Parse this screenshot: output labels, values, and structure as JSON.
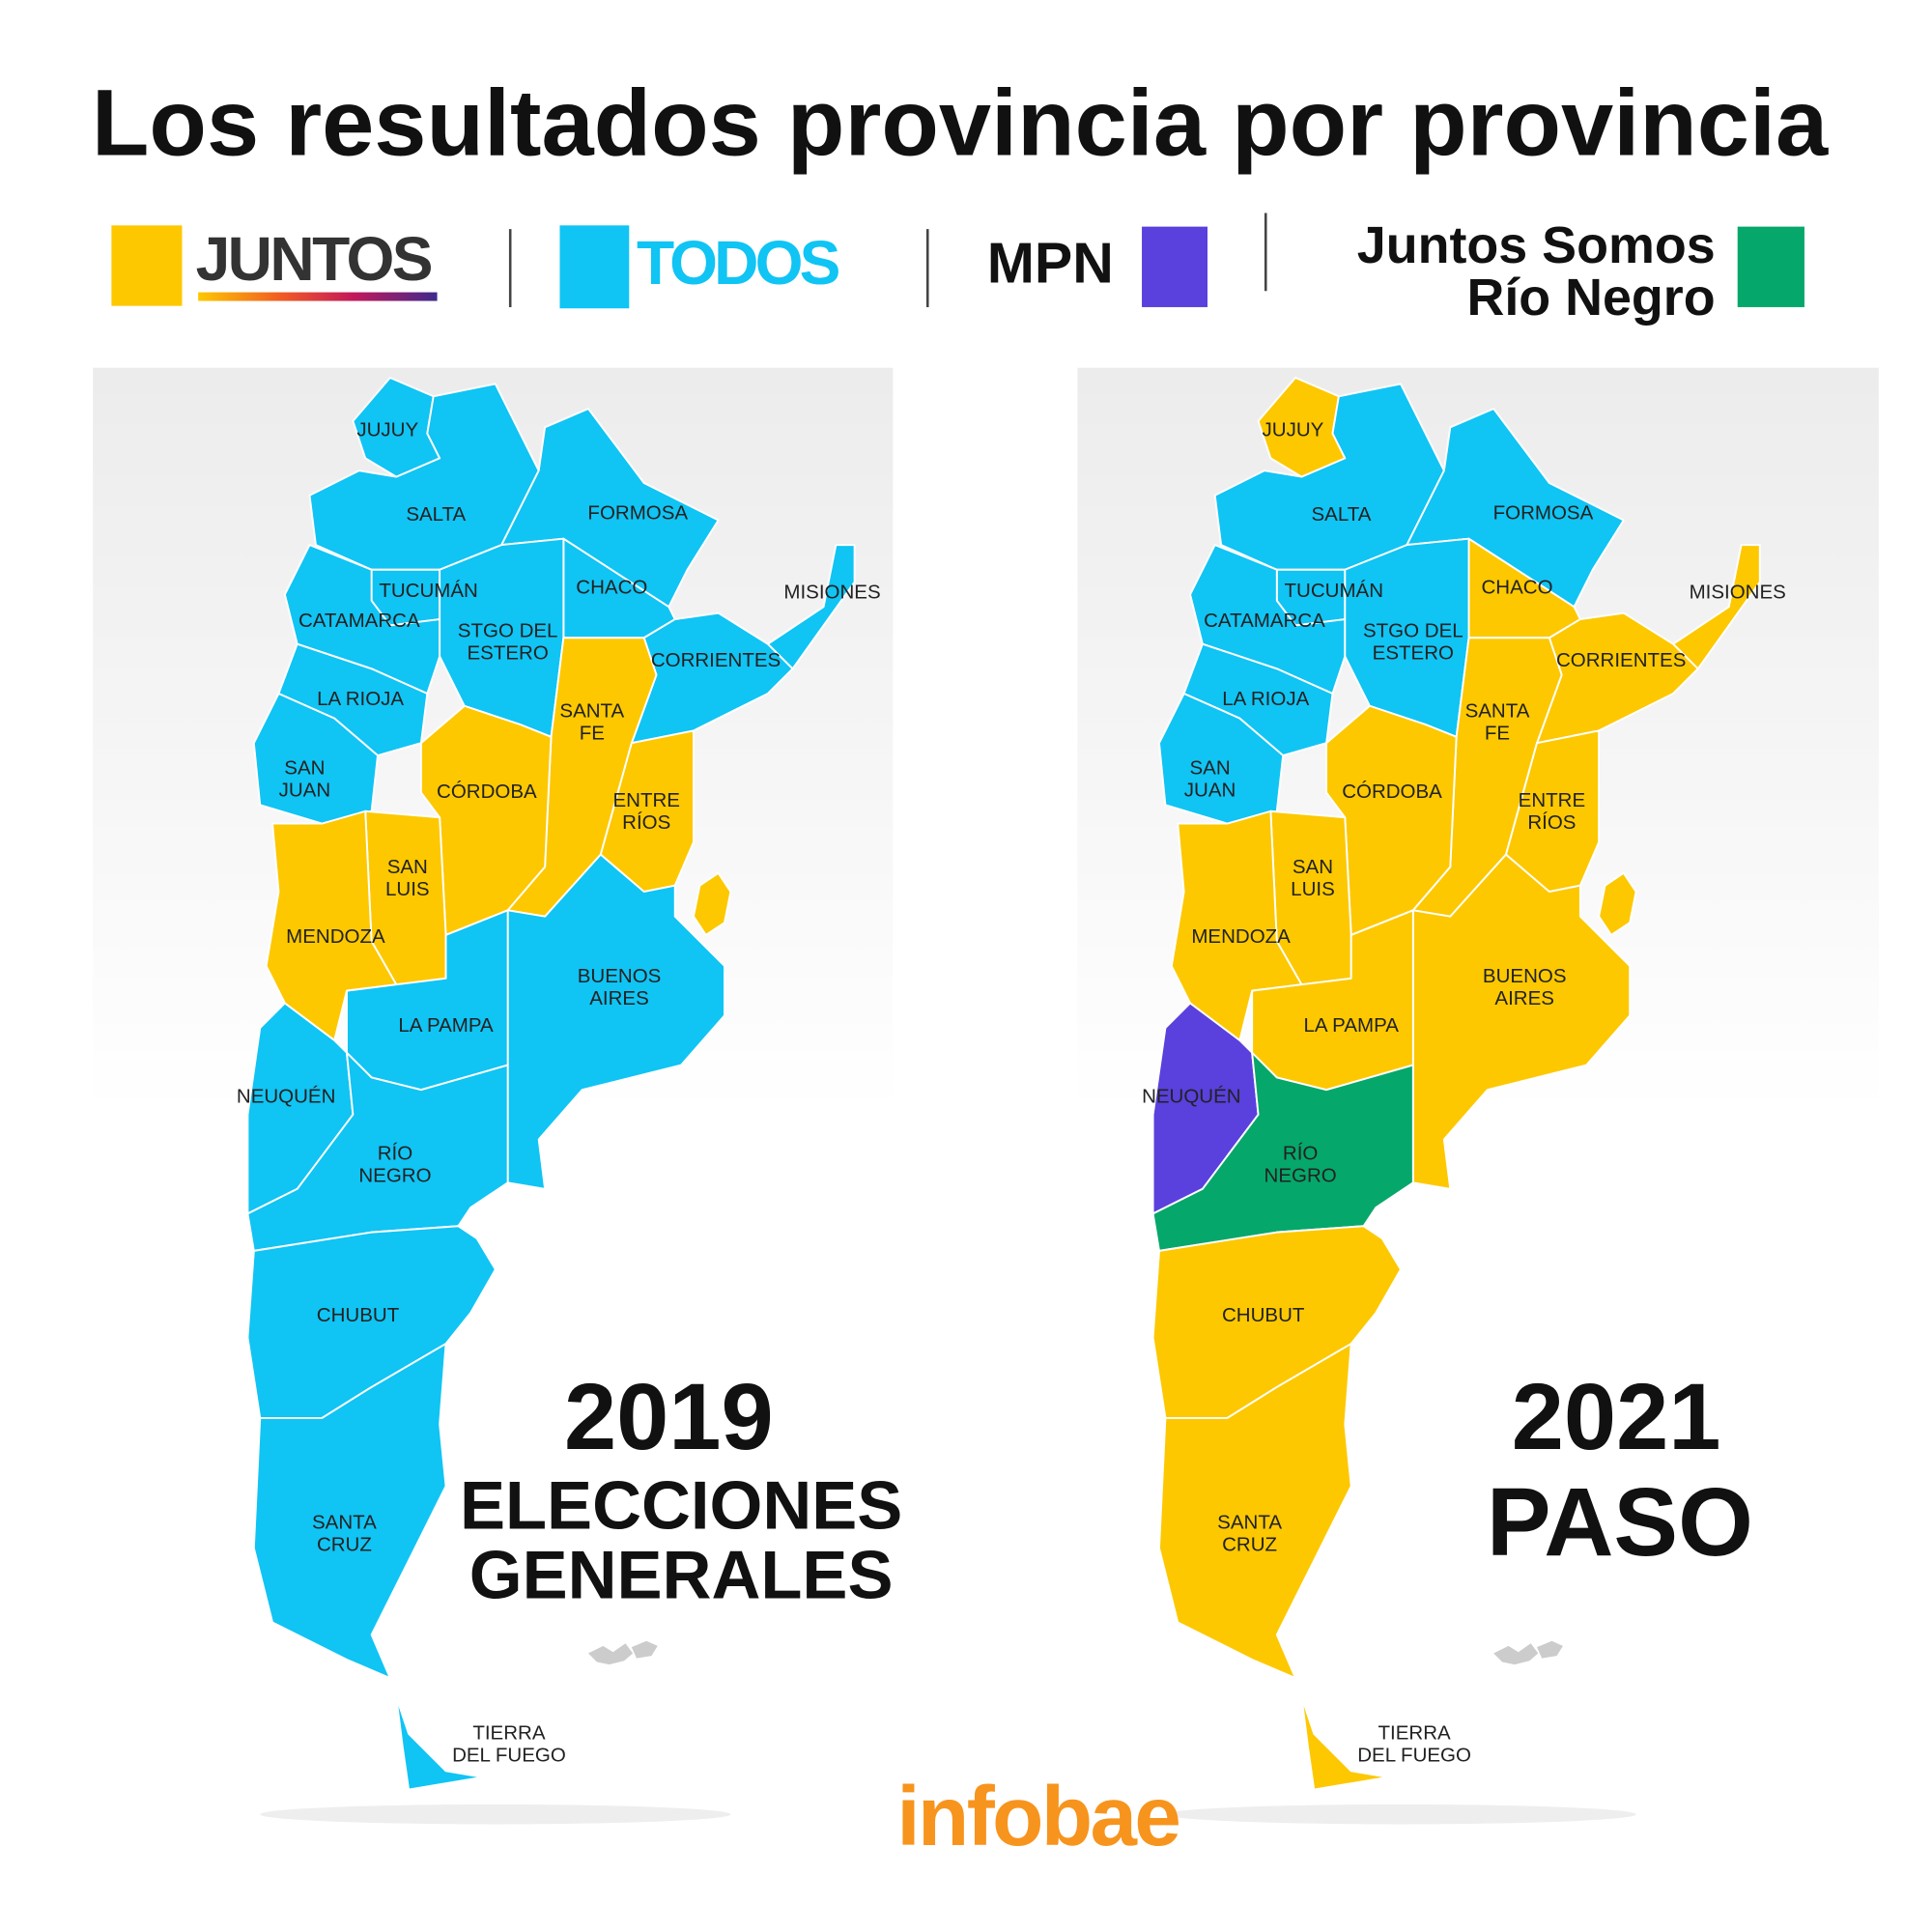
{
  "title": "Los resultados provincia por provincia",
  "legend": [
    {
      "label": "JUNTOS",
      "color": "#fdc800"
    },
    {
      "label": "TODOS",
      "color": "#10c4f4"
    },
    {
      "label": "MPN",
      "color": "#5a40dc"
    },
    {
      "label": [
        "Juntos Somos",
        "Río Negro"
      ],
      "color": "#06a76b"
    }
  ],
  "maps": [
    {
      "year": "2019",
      "subtitle": [
        "ELECCIONES",
        "GENERALES"
      ],
      "provinces": [
        {
          "label": [
            "JUJUY"
          ],
          "color": "#10c4f4"
        },
        {
          "label": [
            "SALTA"
          ],
          "color": "#10c4f4"
        },
        {
          "label": [
            "FORMOSA"
          ],
          "color": "#10c4f4"
        },
        {
          "label": [
            "CHACO"
          ],
          "color": "#10c4f4"
        },
        {
          "label": [
            "MISIONES"
          ],
          "color": "#10c4f4"
        },
        {
          "label": [
            "TUCUMÁN"
          ],
          "color": "#10c4f4"
        },
        {
          "label": [
            "CATAMARCA"
          ],
          "color": "#10c4f4"
        },
        {
          "label": [
            "STGO DEL",
            "ESTERO"
          ],
          "color": "#10c4f4"
        },
        {
          "label": [
            "CORRIENTES"
          ],
          "color": "#10c4f4"
        },
        {
          "label": [
            "LA RIOJA"
          ],
          "color": "#10c4f4"
        },
        {
          "label": [
            "SANTA",
            "FE"
          ],
          "color": "#fdc800"
        },
        {
          "label": [
            "SAN",
            "JUAN"
          ],
          "color": "#10c4f4"
        },
        {
          "label": [
            "CÓRDOBA"
          ],
          "color": "#fdc800"
        },
        {
          "label": [
            "ENTRE",
            "RÍOS"
          ],
          "color": "#fdc800"
        },
        {
          "label": [
            "SAN",
            "LUIS"
          ],
          "color": "#fdc800"
        },
        {
          "label": [
            "MENDOZA"
          ],
          "color": "#fdc800"
        },
        {
          "label": [
            "BUENOS",
            "AIRES"
          ],
          "color": "#10c4f4"
        },
        {
          "label": [
            "LA PAMPA"
          ],
          "color": "#10c4f4"
        },
        {
          "label": [
            "NEUQUÉN"
          ],
          "color": "#10c4f4"
        },
        {
          "label": [
            "RÍO",
            "NEGRO"
          ],
          "color": "#10c4f4"
        },
        {
          "label": [
            "CHUBUT"
          ],
          "color": "#10c4f4"
        },
        {
          "label": [
            "SANTA",
            "CRUZ"
          ],
          "color": "#10c4f4"
        },
        {
          "label": [
            "TIERRA",
            "DEL FUEGO"
          ],
          "color": "#10c4f4"
        },
        {
          "color": "#fdc800"
        }
      ]
    },
    {
      "year": "2021",
      "subtitle": [
        "PASO"
      ],
      "provinces": [
        {
          "label": [
            "JUJUY"
          ],
          "color": "#fdc800"
        },
        {
          "label": [
            "SALTA"
          ],
          "color": "#10c4f4"
        },
        {
          "label": [
            "FORMOSA"
          ],
          "color": "#10c4f4"
        },
        {
          "label": [
            "CHACO"
          ],
          "color": "#fdc800"
        },
        {
          "label": [
            "MISIONES"
          ],
          "color": "#fdc800"
        },
        {
          "label": [
            "TUCUMÁN"
          ],
          "color": "#10c4f4"
        },
        {
          "label": [
            "CATAMARCA"
          ],
          "color": "#10c4f4"
        },
        {
          "label": [
            "STGO DEL",
            "ESTERO"
          ],
          "color": "#10c4f4"
        },
        {
          "label": [
            "CORRIENTES"
          ],
          "color": "#fdc800"
        },
        {
          "label": [
            "LA RIOJA"
          ],
          "color": "#10c4f4"
        },
        {
          "label": [
            "SANTA",
            "FE"
          ],
          "color": "#fdc800"
        },
        {
          "label": [
            "SAN",
            "JUAN"
          ],
          "color": "#10c4f4"
        },
        {
          "label": [
            "CÓRDOBA"
          ],
          "color": "#fdc800"
        },
        {
          "label": [
            "ENTRE",
            "RÍOS"
          ],
          "color": "#fdc800"
        },
        {
          "label": [
            "SAN",
            "LUIS"
          ],
          "color": "#fdc800"
        },
        {
          "label": [
            "MENDOZA"
          ],
          "color": "#fdc800"
        },
        {
          "label": [
            "BUENOS",
            "AIRES"
          ],
          "color": "#fdc800"
        },
        {
          "label": [
            "LA PAMPA"
          ],
          "color": "#fdc800"
        },
        {
          "label": [
            "NEUQUÉN"
          ],
          "color": "#5a40dc"
        },
        {
          "label": [
            "RÍO",
            "NEGRO"
          ],
          "color": "#06a76b"
        },
        {
          "label": [
            "CHUBUT"
          ],
          "color": "#fdc800"
        },
        {
          "label": [
            "SANTA",
            "CRUZ"
          ],
          "color": "#fdc800"
        },
        {
          "label": [
            "TIERRA",
            "DEL FUEGO"
          ],
          "color": "#fdc800"
        },
        {
          "color": "#fdc800"
        }
      ]
    }
  ],
  "footer": "infobae"
}
